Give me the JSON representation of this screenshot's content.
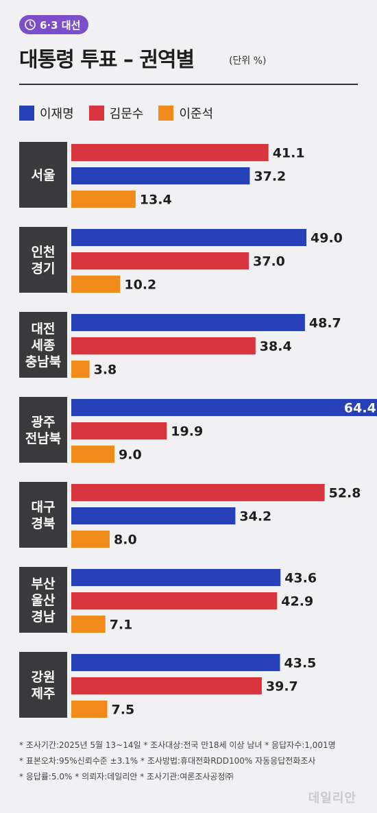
{
  "badge": {
    "icon": "ballot-clock-icon",
    "label": "6·3 대선"
  },
  "title": "대통령 투표 – 권역별",
  "unit_note": "(단위 %)",
  "colors": {
    "lee_jaemyung": "#2540b8",
    "kim_moonsoo": "#d8353f",
    "lee_junseok": "#ef8a1b",
    "region_box": "#3a3a3c"
  },
  "chart_data": {
    "type": "bar",
    "orientation": "horizontal",
    "unit": "%",
    "legend": [
      "이재명",
      "김문수",
      "이준석"
    ],
    "legend_placement": "top-left",
    "groups": [
      {
        "region": [
          "서울"
        ],
        "bars": [
          {
            "candidate": "김문수",
            "value": 41.1
          },
          {
            "candidate": "이재명",
            "value": 37.2
          },
          {
            "candidate": "이준석",
            "value": 13.4
          }
        ]
      },
      {
        "region": [
          "인천",
          "경기"
        ],
        "bars": [
          {
            "candidate": "이재명",
            "value": 49.0
          },
          {
            "candidate": "김문수",
            "value": 37.0
          },
          {
            "candidate": "이준석",
            "value": 10.2
          }
        ]
      },
      {
        "region": [
          "대전",
          "세종",
          "충남북"
        ],
        "bars": [
          {
            "candidate": "이재명",
            "value": 48.7
          },
          {
            "candidate": "김문수",
            "value": 38.4
          },
          {
            "candidate": "이준석",
            "value": 3.8
          }
        ]
      },
      {
        "region": [
          "광주",
          "전남북"
        ],
        "bars": [
          {
            "candidate": "이재명",
            "value": 64.4
          },
          {
            "candidate": "김문수",
            "value": 19.9
          },
          {
            "candidate": "이준석",
            "value": 9.0
          }
        ]
      },
      {
        "region": [
          "대구",
          "경북"
        ],
        "bars": [
          {
            "candidate": "김문수",
            "value": 52.8
          },
          {
            "candidate": "이재명",
            "value": 34.2
          },
          {
            "candidate": "이준석",
            "value": 8.0
          }
        ]
      },
      {
        "region": [
          "부산",
          "울산",
          "경남"
        ],
        "bars": [
          {
            "candidate": "이재명",
            "value": 43.6
          },
          {
            "candidate": "김문수",
            "value": 42.9
          },
          {
            "candidate": "이준석",
            "value": 7.1
          }
        ]
      },
      {
        "region": [
          "강원",
          "제주"
        ],
        "bars": [
          {
            "candidate": "이재명",
            "value": 43.5
          },
          {
            "candidate": "김문수",
            "value": 39.7
          },
          {
            "candidate": "이준석",
            "value": 7.5
          }
        ]
      }
    ]
  },
  "footnotes": [
    "* 조사기간:2025년 5월 13~14일  * 조사대상:전국 만18세 이상 남녀  * 응답자수:1,001명",
    "* 표본오차:95%신뢰수준 ±3.1%  * 조사방법:휴대전화RDD100% 자동응답전화조사",
    "* 응답률:5.0%  * 의뢰자:데일리안  * 조사기관:여론조사공정㈜"
  ],
  "watermark": "데일리안"
}
